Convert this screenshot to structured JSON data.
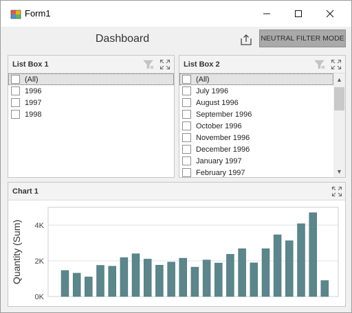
{
  "window": {
    "title": "Form1",
    "controls": [
      "minimize",
      "maximize",
      "close"
    ]
  },
  "dashboard": {
    "title": "Dashboard",
    "export_icon": "export-icon",
    "neutral_filter_label": "NEUTRAL FILTER MODE"
  },
  "list_box_1": {
    "title": "List Box 1",
    "items": [
      "(All)",
      "1996",
      "1997",
      "1998"
    ],
    "selected_index": 0
  },
  "list_box_2": {
    "title": "List Box 2",
    "items": [
      "(All)",
      "July 1996",
      "August 1996",
      "September 1996",
      "October 1996",
      "November 1996",
      "December 1996",
      "January 1997",
      "February 1997"
    ],
    "selected_index": 0
  },
  "chart_1": {
    "title": "Chart 1"
  },
  "chart_data": {
    "type": "bar",
    "ylabel": "Quantity (Sum)",
    "ylim": [
      0,
      5000
    ],
    "yticks": [
      0,
      2000,
      4000
    ],
    "ytick_labels": [
      "0K",
      "2K",
      "4K"
    ],
    "grid": true,
    "bar_color": "#5b868b",
    "values": [
      1460,
      1310,
      1100,
      1750,
      1700,
      2180,
      2400,
      2100,
      1760,
      1930,
      2150,
      1650,
      2050,
      1880,
      2370,
      2680,
      1890,
      2680,
      3460,
      3130,
      4080,
      4700,
      900
    ]
  },
  "colors": {
    "bar": "#5b868b",
    "button_bg": "#a9a9a9",
    "caption_bg": "#f3f3f3"
  }
}
